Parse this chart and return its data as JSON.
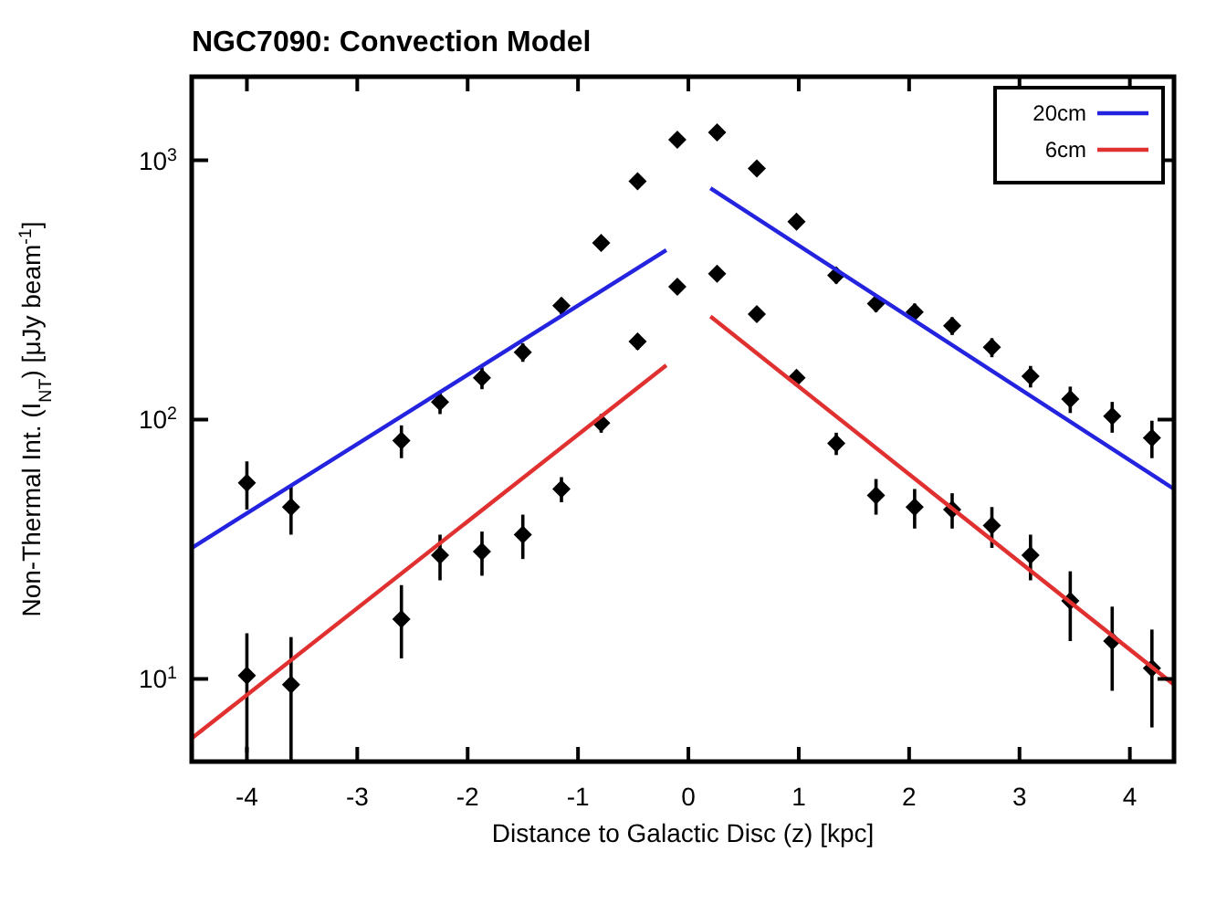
{
  "chart_data": {
    "type": "scatter",
    "title": "NGC7090: Convection Model",
    "xlabel": "Distance to Galactic Disc (z) [kpc]",
    "ylabel": "Non-Thermal Int. (I$_{NT}$) [μJy beam$^{-1}$]",
    "xlim": [
      -4.5,
      4.4
    ],
    "xticks": [
      -4,
      -3,
      -2,
      -1,
      0,
      1,
      2,
      3,
      4
    ],
    "ylim": [
      4.8,
      2100
    ],
    "log": "y",
    "yticks": [
      {
        "value": 10,
        "label": "10$^{1}$"
      },
      {
        "value": 100,
        "label": "10$^{2}$"
      },
      {
        "value": 1000,
        "label": "10$^{3}$"
      }
    ],
    "grid": false,
    "legend": "top right",
    "series": [
      {
        "color": "#000000",
        "marker": "diamond",
        "x": [
          -4,
          -3.6,
          -2.6,
          -2.25,
          -1.87,
          -1.5,
          -1.15,
          -0.79,
          -0.46,
          -0.1,
          0.26,
          0.62,
          0.98,
          1.34,
          1.7,
          2.05,
          2.39,
          2.75,
          3.1,
          3.46,
          3.84,
          4.2
        ],
        "values": [
          57,
          46,
          83,
          117,
          145,
          182,
          275,
          480,
          830,
          1200,
          1280,
          930,
          580,
          360,
          280,
          260,
          230,
          190,
          147,
          120,
          103,
          85
        ],
        "errors": [
          12,
          10,
          12,
          12,
          14,
          15,
          20,
          30,
          50,
          70,
          70,
          50,
          35,
          25,
          20,
          20,
          18,
          16,
          14,
          14,
          14,
          14
        ]
      },
      {
        "color": "#000000",
        "marker": "diamond",
        "x": [
          -4,
          -3.6,
          -2.6,
          -2.25,
          -1.87,
          -1.5,
          -1.15,
          -0.79,
          -0.46,
          -0.1,
          0.26,
          0.62,
          0.98,
          1.34,
          1.7,
          2.05,
          2.39,
          2.75,
          3.1,
          3.46,
          3.84,
          4.2
        ],
        "values": [
          10.3,
          9.5,
          17,
          30,
          31,
          36,
          54,
          97,
          200,
          325,
          365,
          255,
          145,
          81,
          51,
          46,
          45,
          39,
          30,
          20,
          14,
          11
        ],
        "errors": [
          [
            5.2,
            15
          ],
          [
            4.8,
            14.5
          ],
          [
            12,
            23
          ],
          6,
          6,
          7,
          6,
          8,
          14,
          20,
          20,
          15,
          10,
          8,
          8,
          8,
          7,
          7,
          6,
          6,
          5,
          4.5
        ]
      },
      {
        "type": "line",
        "name": "20cm",
        "color": "#2323e0",
        "x": [
          -4.5,
          -0.2,
          0,
          0.2,
          4.4
        ],
        "values": [
          32,
          450,
          null,
          780,
          54
        ]
      },
      {
        "type": "line",
        "name": "6cm",
        "color": "#e03030",
        "x": [
          -4.5,
          -0.2,
          0,
          0.2,
          4.4
        ],
        "values": [
          5.9,
          162,
          null,
          250,
          9.5
        ]
      }
    ]
  }
}
